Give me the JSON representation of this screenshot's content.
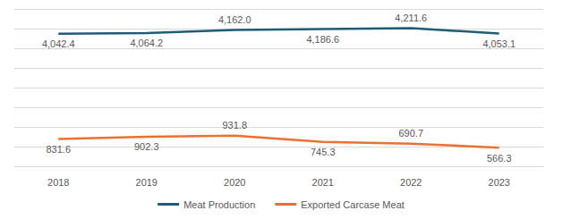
{
  "chart_data": {
    "type": "line",
    "categories": [
      "2018",
      "2019",
      "2020",
      "2021",
      "2022",
      "2023"
    ],
    "series": [
      {
        "name": "Meat Production",
        "color": "#1E5C78",
        "values": [
          4042.4,
          4064.2,
          4162.0,
          4186.6,
          4211.6,
          4053.1
        ],
        "value_labels": [
          "4,042.4",
          "4,064.2",
          "4,162.0",
          "4,186.6",
          "4,211.6",
          "4,053.1"
        ]
      },
      {
        "name": "Exported Carcase Meat",
        "color": "#E97132",
        "values": [
          831.6,
          902.3,
          931.8,
          745.3,
          690.7,
          566.3
        ],
        "value_labels": [
          "831.6",
          "902.3",
          "931.8",
          "745.3",
          "690.7",
          "566.3"
        ]
      }
    ],
    "ylim": [
      0,
      4800
    ],
    "yticks": [
      0,
      600,
      1200,
      1800,
      2400,
      3000,
      3600,
      4200,
      4800
    ],
    "grid": true,
    "legend": "bottom",
    "data_labels": true,
    "tick_labels": "x"
  }
}
